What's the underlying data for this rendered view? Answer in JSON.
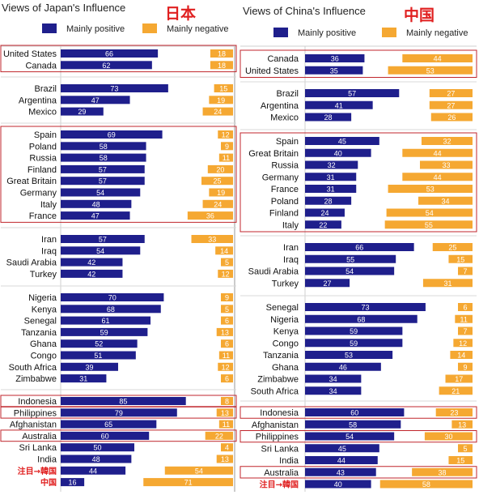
{
  "legend": {
    "positive": "Mainly positive",
    "negative": "Mainly negative"
  },
  "colors": {
    "positive": "#1f1f8c",
    "negative": "#f5a832",
    "highlight": "#c0262c",
    "divider": "#9a9a9a"
  },
  "chart_data": [
    {
      "type": "bar",
      "title": "Views of Japan's Influence",
      "title_cjk": "日本",
      "series": [
        {
          "name": "Mainly positive"
        },
        {
          "name": "Mainly negative"
        }
      ],
      "groups": [
        {
          "boxed": true,
          "rows": [
            {
              "label": "United States",
              "positive": 66,
              "negative": 18
            },
            {
              "label": "Canada",
              "positive": 62,
              "negative": 18
            }
          ]
        },
        {
          "boxed": false,
          "rows": [
            {
              "label": "Brazil",
              "positive": 73,
              "negative": 15
            },
            {
              "label": "Argentina",
              "positive": 47,
              "negative": 19
            },
            {
              "label": "Mexico",
              "positive": 29,
              "negative": 24
            }
          ]
        },
        {
          "boxed": true,
          "rows": [
            {
              "label": "Spain",
              "positive": 69,
              "negative": 12
            },
            {
              "label": "Poland",
              "positive": 58,
              "negative": 9
            },
            {
              "label": "Russia",
              "positive": 58,
              "negative": 11
            },
            {
              "label": "Finland",
              "positive": 57,
              "negative": 20
            },
            {
              "label": "Great Britain",
              "positive": 57,
              "negative": 25
            },
            {
              "label": "Germany",
              "positive": 54,
              "negative": 19
            },
            {
              "label": "Italy",
              "positive": 48,
              "negative": 24
            },
            {
              "label": "France",
              "positive": 47,
              "negative": 36
            }
          ]
        },
        {
          "boxed": false,
          "rows": [
            {
              "label": "Iran",
              "positive": 57,
              "negative": 33
            },
            {
              "label": "Iraq",
              "positive": 54,
              "negative": 14
            },
            {
              "label": "Saudi Arabia",
              "positive": 42,
              "negative": 5
            },
            {
              "label": "Turkey",
              "positive": 42,
              "negative": 12
            }
          ]
        },
        {
          "boxed": false,
          "rows": [
            {
              "label": "Nigeria",
              "positive": 70,
              "negative": 9
            },
            {
              "label": "Kenya",
              "positive": 68,
              "negative": 5
            },
            {
              "label": "Senegal",
              "positive": 61,
              "negative": 6
            },
            {
              "label": "Tanzania",
              "positive": 59,
              "negative": 13
            },
            {
              "label": "Ghana",
              "positive": 52,
              "negative": 6
            },
            {
              "label": "Congo",
              "positive": 51,
              "negative": 11
            },
            {
              "label": "South Africa",
              "positive": 39,
              "negative": 12
            },
            {
              "label": "Zimbabwe",
              "positive": 31,
              "negative": 6
            }
          ]
        },
        {
          "boxed": false,
          "rows": [
            {
              "label": "Indonesia",
              "positive": 85,
              "negative": 8,
              "boxed": true
            },
            {
              "label": "Philippines",
              "positive": 79,
              "negative": 13,
              "boxed": true
            },
            {
              "label": "Afghanistan",
              "positive": 65,
              "negative": 11
            },
            {
              "label": "Australia",
              "positive": 60,
              "negative": 22,
              "boxed": true
            },
            {
              "label": "Sri Lanka",
              "positive": 50,
              "negative": 4
            },
            {
              "label": "India",
              "positive": 48,
              "negative": 13
            },
            {
              "label": "注目→韓国",
              "positive": 44,
              "negative": 54,
              "note": true
            },
            {
              "label": "中国",
              "positive": 16,
              "negative": 71,
              "note": true
            }
          ]
        }
      ]
    },
    {
      "type": "bar",
      "title": "Views of China's Influence",
      "title_cjk": "中国",
      "series": [
        {
          "name": "Mainly positive"
        },
        {
          "name": "Mainly negative"
        }
      ],
      "groups": [
        {
          "boxed": true,
          "rows": [
            {
              "label": "Canada",
              "positive": 36,
              "negative": 44
            },
            {
              "label": "United States",
              "positive": 35,
              "negative": 53
            }
          ]
        },
        {
          "boxed": false,
          "rows": [
            {
              "label": "Brazil",
              "positive": 57,
              "negative": 27
            },
            {
              "label": "Argentina",
              "positive": 41,
              "negative": 27
            },
            {
              "label": "Mexico",
              "positive": 28,
              "negative": 26
            }
          ]
        },
        {
          "boxed": true,
          "rows": [
            {
              "label": "Spain",
              "positive": 45,
              "negative": 32
            },
            {
              "label": "Great Britain",
              "positive": 40,
              "negative": 44
            },
            {
              "label": "Russia",
              "positive": 32,
              "negative": 33
            },
            {
              "label": "Germany",
              "positive": 31,
              "negative": 44
            },
            {
              "label": "France",
              "positive": 31,
              "negative": 53
            },
            {
              "label": "Poland",
              "positive": 28,
              "negative": 34
            },
            {
              "label": "Finland",
              "positive": 24,
              "negative": 54
            },
            {
              "label": "Italy",
              "positive": 22,
              "negative": 55
            }
          ]
        },
        {
          "boxed": false,
          "rows": [
            {
              "label": "Iran",
              "positive": 66,
              "negative": 25
            },
            {
              "label": "Iraq",
              "positive": 55,
              "negative": 15
            },
            {
              "label": "Saudi Arabia",
              "positive": 54,
              "negative": 7
            },
            {
              "label": "Turkey",
              "positive": 27,
              "negative": 31
            }
          ]
        },
        {
          "boxed": false,
          "rows": [
            {
              "label": "Senegal",
              "positive": 73,
              "negative": 6
            },
            {
              "label": "Nigeria",
              "positive": 68,
              "negative": 11
            },
            {
              "label": "Kenya",
              "positive": 59,
              "negative": 7
            },
            {
              "label": "Congo",
              "positive": 59,
              "negative": 12
            },
            {
              "label": "Tanzania",
              "positive": 53,
              "negative": 14
            },
            {
              "label": "Ghana",
              "positive": 46,
              "negative": 9
            },
            {
              "label": "Zimbabwe",
              "positive": 34,
              "negative": 17
            },
            {
              "label": "South Africa",
              "positive": 34,
              "negative": 21
            }
          ]
        },
        {
          "boxed": false,
          "rows": [
            {
              "label": "Indonesia",
              "positive": 60,
              "negative": 23,
              "boxed": true
            },
            {
              "label": "Afghanistan",
              "positive": 58,
              "negative": 13
            },
            {
              "label": "Philippines",
              "positive": 54,
              "negative": 30,
              "boxed": true
            },
            {
              "label": "Sri Lanka",
              "positive": 45,
              "negative": 5
            },
            {
              "label": "India",
              "positive": 44,
              "negative": 15
            },
            {
              "label": "Australia",
              "positive": 43,
              "negative": 38,
              "boxed": true
            },
            {
              "label": "注目→韓国",
              "positive": 40,
              "negative": 58,
              "note": true
            }
          ]
        }
      ]
    }
  ]
}
